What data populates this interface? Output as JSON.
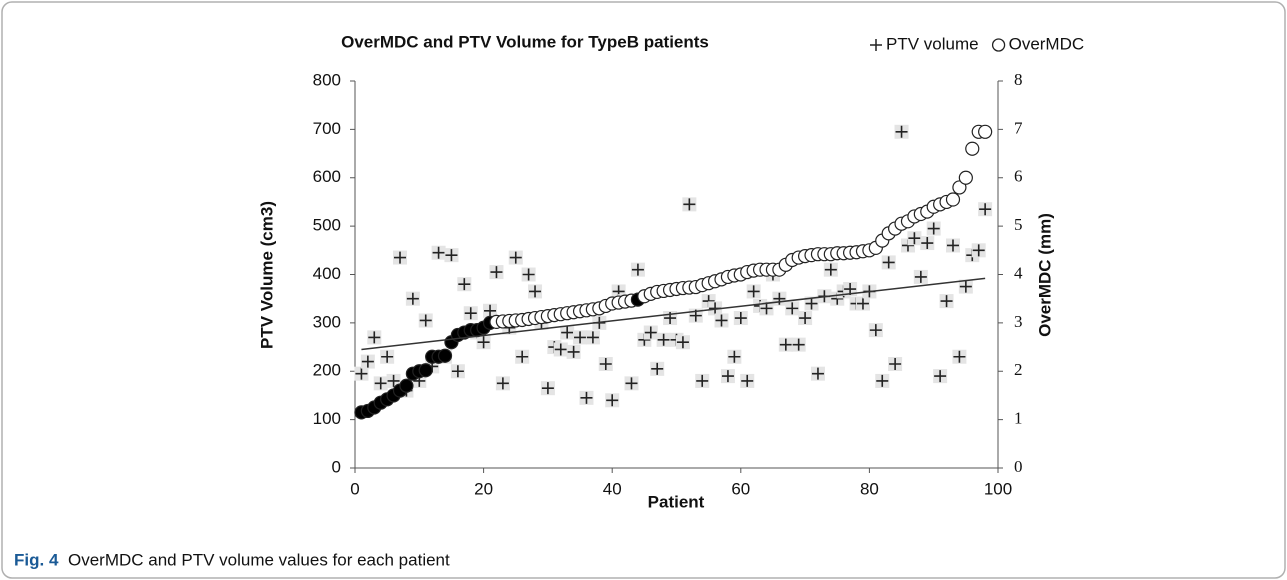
{
  "chart_data": {
    "type": "scatter",
    "title": "OverMDC and PTV Volume for TypeB patients",
    "xlabel": "Patient",
    "ylabel": "PTV Volume (cm3)",
    "y2label": "OverMDC (mm)",
    "caption_label": "Fig. 4",
    "caption": "OverMDC and PTV volume values for each patient",
    "xlim": [
      0,
      100
    ],
    "xticks": [
      0,
      20,
      40,
      60,
      80,
      100
    ],
    "ylim": [
      0,
      800
    ],
    "yticks": [
      0,
      100,
      200,
      300,
      400,
      500,
      600,
      700,
      800
    ],
    "y2lim": [
      0,
      8
    ],
    "y2ticks": [
      0,
      1,
      2,
      3,
      4,
      5,
      6,
      7,
      8
    ],
    "x": [
      1,
      2,
      3,
      4,
      5,
      6,
      7,
      8,
      9,
      10,
      11,
      12,
      13,
      14,
      15,
      16,
      17,
      18,
      19,
      20,
      21,
      22,
      23,
      24,
      25,
      26,
      27,
      28,
      29,
      30,
      31,
      32,
      33,
      34,
      35,
      36,
      37,
      38,
      39,
      40,
      41,
      42,
      43,
      44,
      45,
      46,
      47,
      48,
      49,
      50,
      51,
      52,
      53,
      54,
      55,
      56,
      57,
      58,
      59,
      60,
      61,
      62,
      63,
      64,
      65,
      66,
      67,
      68,
      69,
      70,
      71,
      72,
      73,
      74,
      75,
      76,
      77,
      78,
      79,
      80,
      81,
      82,
      83,
      84,
      85,
      86,
      87,
      88,
      89,
      90,
      91,
      92,
      93,
      94,
      95,
      96,
      97,
      98
    ],
    "series": [
      {
        "name": "PTV volume",
        "marker": "plus",
        "color": "#222222",
        "axis": "y",
        "values": [
          195,
          220,
          270,
          175,
          230,
          180,
          435,
          160,
          350,
          180,
          305,
          210,
          445,
          230,
          440,
          200,
          380,
          320,
          280,
          260,
          325,
          405,
          175,
          290,
          435,
          230,
          400,
          365,
          300,
          165,
          250,
          245,
          280,
          240,
          270,
          145,
          270,
          300,
          215,
          140,
          365,
          345,
          175,
          410,
          265,
          280,
          205,
          265,
          310,
          265,
          260,
          545,
          315,
          180,
          345,
          330,
          305,
          190,
          230,
          310,
          180,
          365,
          335,
          330,
          400,
          350,
          255,
          330,
          255,
          310,
          340,
          195,
          355,
          410,
          350,
          365,
          370,
          340,
          340,
          365,
          285,
          180,
          425,
          215,
          695,
          460,
          475,
          395,
          465,
          495,
          190,
          345,
          460,
          230,
          375,
          440,
          450,
          535
        ]
      },
      {
        "name": "OverMDC",
        "marker": "circle",
        "color": "#222222",
        "axis": "y2",
        "values": [
          1.15,
          1.18,
          1.25,
          1.35,
          1.42,
          1.5,
          1.6,
          1.7,
          1.95,
          2.0,
          2.02,
          2.3,
          2.3,
          2.32,
          2.6,
          2.75,
          2.8,
          2.85,
          2.85,
          2.9,
          3.0,
          3.02,
          3.03,
          3.04,
          3.05,
          3.06,
          3.08,
          3.1,
          3.12,
          3.14,
          3.16,
          3.18,
          3.2,
          3.22,
          3.24,
          3.26,
          3.28,
          3.3,
          3.35,
          3.4,
          3.42,
          3.44,
          3.46,
          3.48,
          3.55,
          3.6,
          3.64,
          3.66,
          3.68,
          3.7,
          3.72,
          3.73,
          3.74,
          3.78,
          3.82,
          3.86,
          3.9,
          3.95,
          3.98,
          4.0,
          4.05,
          4.08,
          4.1,
          4.1,
          4.1,
          4.1,
          4.2,
          4.3,
          4.35,
          4.38,
          4.4,
          4.42,
          4.42,
          4.42,
          4.44,
          4.44,
          4.45,
          4.46,
          4.48,
          4.5,
          4.55,
          4.7,
          4.85,
          4.95,
          5.05,
          5.1,
          5.2,
          5.25,
          5.3,
          5.4,
          5.45,
          5.5,
          5.55,
          5.8,
          6.0,
          6.6,
          6.95,
          6.95
        ],
        "point_colors": [
          "#000000",
          "#000000",
          "#000000",
          "#000000",
          "#000000",
          "#000000",
          "#000000",
          "#000000",
          "#000000",
          "#000000",
          "#000000",
          "#000000",
          "#000000",
          "#000000",
          "#000000",
          "#000000",
          "#000000",
          "#000000",
          "#000000",
          "#000000",
          "#000000",
          "#ffffff",
          "#ffffff",
          "#ffffff",
          "#ffffff",
          "#ffffff",
          "#ffffff",
          "#ffffff",
          "#ffffff",
          "#ffffff",
          "#ffffff",
          "#ffffff",
          "#ffffff",
          "#ffffff",
          "#ffffff",
          "#ffffff",
          "#ffffff",
          "#ffffff",
          "#ffffff",
          "#ffffff",
          "#ffffff",
          "#ffffff",
          "#ffffff",
          "#000000",
          "#ffffff",
          "#ffffff",
          "#ffffff",
          "#ffffff",
          "#ffffff",
          "#ffffff",
          "#ffffff",
          "#ffffff",
          "#ffffff",
          "#ffffff",
          "#ffffff",
          "#ffffff",
          "#ffffff",
          "#ffffff",
          "#ffffff",
          "#ffffff",
          "#ffffff",
          "#ffffff",
          "#ffffff",
          "#ffffff",
          "#ffffff",
          "#ffffff",
          "#ffffff",
          "#ffffff",
          "#ffffff",
          "#ffffff",
          "#ffffff",
          "#ffffff",
          "#ffffff",
          "#ffffff",
          "#ffffff",
          "#ffffff",
          "#ffffff",
          "#ffffff",
          "#ffffff",
          "#ffffff",
          "#ffffff",
          "#ffffff",
          "#ffffff",
          "#ffffff",
          "#ffffff",
          "#ffffff",
          "#ffffff",
          "#ffffff",
          "#ffffff",
          "#ffffff",
          "#ffffff",
          "#ffffff",
          "#ffffff",
          "#ffffff",
          "#ffffff",
          "#ffffff",
          "#ffffff",
          "#ffffff"
        ]
      }
    ],
    "trendline": {
      "x": [
        1,
        98
      ],
      "y": [
        245,
        392
      ],
      "color": "#333333"
    }
  }
}
